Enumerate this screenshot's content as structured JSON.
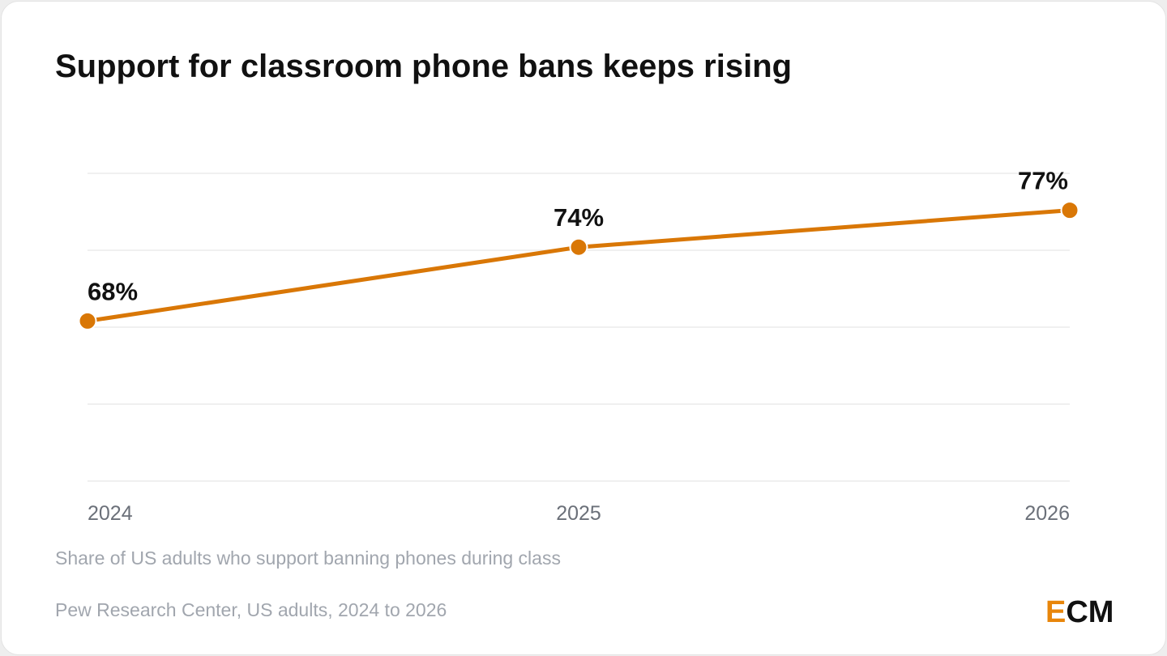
{
  "chart_data": {
    "type": "line",
    "title": "Support for classroom phone bans keeps rising",
    "subtitle": "Share of US adults who support banning phones during class",
    "source": "Pew Research Center, US adults, 2024 to 2026",
    "x": [
      "2024",
      "2025",
      "2026"
    ],
    "series": [
      {
        "values": [
          68,
          74,
          77
        ],
        "labels": [
          "68%",
          "74%",
          "77%"
        ],
        "color": "#d97706"
      }
    ],
    "ylim": [
      55,
      80
    ],
    "grid": true,
    "legend": "none"
  },
  "brand": {
    "logo_accent": "E",
    "logo_rest": "CM",
    "accent_color": "#e8860b"
  }
}
